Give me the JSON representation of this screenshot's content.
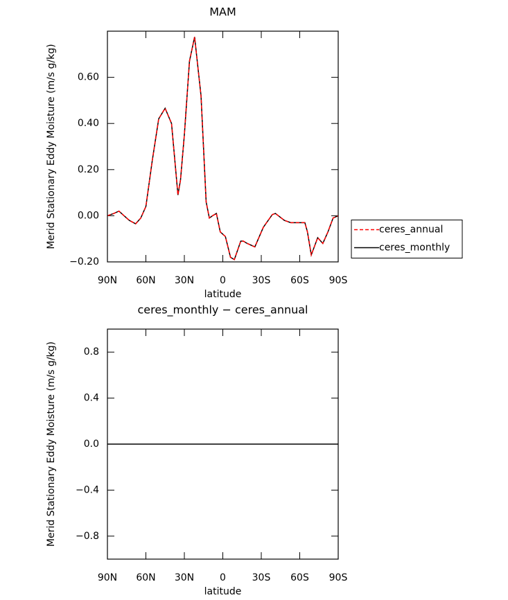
{
  "chart_data": [
    {
      "type": "line",
      "title": "MAM",
      "xlabel": "latitude",
      "ylabel": "Merid Stationary Eddy Moisture (m/s g/kg)",
      "x": [
        90,
        85,
        81,
        77,
        73,
        68,
        64,
        60,
        55,
        50,
        45,
        40,
        35,
        33,
        30,
        26,
        22,
        17,
        13,
        10.5,
        8,
        5,
        2,
        -2,
        -6,
        -9,
        -14,
        -16,
        -19,
        -25,
        -31.6,
        -38.6,
        -41,
        -48,
        -53,
        -64,
        -66,
        -69,
        -74,
        -78,
        -82,
        -86,
        -90
      ],
      "series": [
        {
          "name": "ceres_monthly",
          "color": "#000000",
          "dash": false,
          "values": [
            0.0,
            0.01,
            0.02,
            0.0,
            -0.02,
            -0.035,
            -0.01,
            0.04,
            0.24,
            0.42,
            0.466,
            0.4,
            0.09,
            0.155,
            0.35,
            0.67,
            0.775,
            0.52,
            0.06,
            -0.01,
            0.0,
            0.01,
            -0.07,
            -0.09,
            -0.18,
            -0.19,
            -0.11,
            -0.11,
            -0.12,
            -0.135,
            -0.05,
            0.005,
            0.01,
            -0.02,
            -0.03,
            -0.03,
            -0.07,
            -0.17,
            -0.095,
            -0.12,
            -0.07,
            -0.01,
            0.0
          ]
        },
        {
          "name": "ceres_annual",
          "color": "#ff0000",
          "dash": true,
          "values": [
            0.0,
            0.01,
            0.02,
            0.0,
            -0.02,
            -0.035,
            -0.01,
            0.04,
            0.24,
            0.42,
            0.466,
            0.4,
            0.09,
            0.155,
            0.35,
            0.67,
            0.775,
            0.52,
            0.06,
            -0.01,
            0.0,
            0.01,
            -0.07,
            -0.09,
            -0.18,
            -0.19,
            -0.11,
            -0.11,
            -0.12,
            -0.135,
            -0.05,
            0.005,
            0.01,
            -0.02,
            -0.03,
            -0.03,
            -0.07,
            -0.17,
            -0.095,
            -0.12,
            -0.07,
            -0.01,
            0.0
          ]
        }
      ],
      "xlim": [
        90,
        -90
      ],
      "xticks": [
        {
          "value": 90,
          "label": "90N"
        },
        {
          "value": 60,
          "label": "60N"
        },
        {
          "value": 30,
          "label": "30N"
        },
        0,
        {
          "value": -30,
          "label": "30S"
        },
        {
          "value": -60,
          "label": "60S"
        },
        {
          "value": -90,
          "label": "90S"
        }
      ],
      "ylim": [
        -0.2,
        0.8
      ],
      "yticks": [
        {
          "value": -0.2,
          "label": "−0.20"
        },
        {
          "value": 0,
          "label": "0.00"
        },
        {
          "value": 0.2,
          "label": "0.20"
        },
        {
          "value": 0.4,
          "label": "0.40"
        },
        {
          "value": 0.6,
          "label": "0.60"
        }
      ],
      "legend": "right"
    },
    {
      "type": "line",
      "title": "ceres_monthly − ceres_annual",
      "xlabel": "latitude",
      "ylabel": "Merid Stationary Eddy Moisture (m/s g/kg)",
      "x": [
        90,
        -90
      ],
      "series": [
        {
          "color": "#000000",
          "dash": false,
          "values": [
            0,
            0
          ]
        }
      ],
      "xlim": [
        90,
        -90
      ],
      "xticks": [
        {
          "value": 90,
          "label": "90N"
        },
        {
          "value": 60,
          "label": "60N"
        },
        {
          "value": 30,
          "label": "30N"
        },
        0,
        {
          "value": -30,
          "label": "30S"
        },
        {
          "value": -60,
          "label": "60S"
        },
        {
          "value": -90,
          "label": "90S"
        }
      ],
      "ylim": [
        -1,
        1
      ],
      "yticks": [
        {
          "value": -0.8,
          "label": "−0.8"
        },
        {
          "value": -0.4,
          "label": "−0.4"
        },
        {
          "value": 0,
          "label": "0.0"
        },
        {
          "value": 0.4,
          "label": "0.4"
        },
        {
          "value": 0.8,
          "label": "0.8"
        }
      ]
    }
  ]
}
